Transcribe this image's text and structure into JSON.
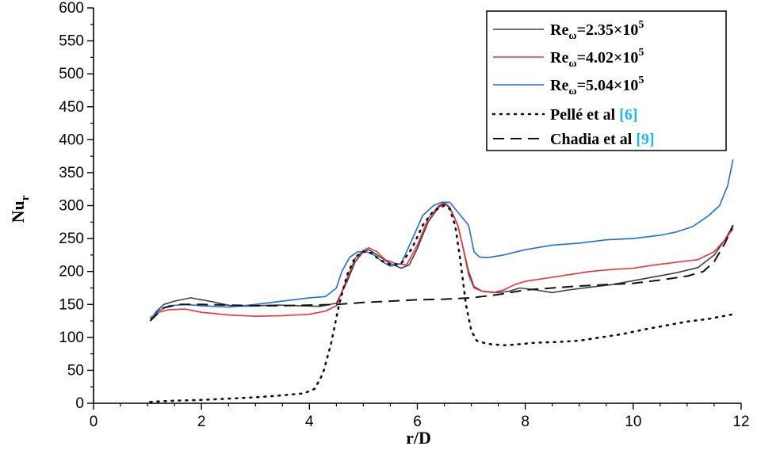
{
  "chart_data": {
    "type": "line",
    "title": "",
    "xlabel": "r/D",
    "ylabel": {
      "base": "Nu",
      "sub": "r"
    },
    "xlim": [
      0,
      12
    ],
    "ylim": [
      0,
      600
    ],
    "x_ticks": [
      "0",
      "2",
      "4",
      "6",
      "8",
      "10",
      "12"
    ],
    "y_ticks": [
      "0",
      "50",
      "100",
      "150",
      "200",
      "250",
      "300",
      "350",
      "400",
      "450",
      "500",
      "550",
      "600"
    ],
    "grid": false,
    "legend_position": "top-right",
    "series": [
      {
        "key": "re235",
        "label_main": "Re",
        "label_sub": "ω",
        "label_value": "=2.35×10",
        "label_exp": "5",
        "color": "#404040",
        "dash": "solid",
        "x": [
          1.05,
          1.15,
          1.3,
          1.5,
          1.8,
          2.2,
          2.6,
          3.0,
          3.4,
          3.8,
          4.2,
          4.5,
          4.7,
          4.85,
          5.0,
          5.1,
          5.2,
          5.35,
          5.5,
          5.7,
          5.85,
          6.0,
          6.2,
          6.4,
          6.5,
          6.6,
          6.75,
          6.85,
          6.95,
          7.05,
          7.2,
          7.5,
          7.7,
          7.9,
          8.2,
          8.5,
          8.8,
          9.2,
          9.6,
          10.0,
          10.4,
          10.8,
          11.2,
          11.5,
          11.7,
          11.85
        ],
        "y": [
          125,
          138,
          150,
          155,
          160,
          154,
          147,
          148,
          149,
          148,
          147,
          152,
          185,
          215,
          230,
          233,
          228,
          220,
          212,
          205,
          210,
          235,
          275,
          298,
          303,
          297,
          270,
          235,
          200,
          177,
          170,
          168,
          170,
          175,
          172,
          168,
          172,
          176,
          180,
          186,
          192,
          198,
          206,
          225,
          248,
          270
        ]
      },
      {
        "key": "re402",
        "label_main": "Re",
        "label_sub": "ω",
        "label_value": "=4.02×10",
        "label_exp": "5",
        "color": "#e8333a",
        "dash": "solid",
        "x": [
          1.05,
          1.2,
          1.4,
          1.7,
          2.0,
          2.5,
          3.0,
          3.5,
          4.0,
          4.3,
          4.5,
          4.7,
          4.85,
          5.0,
          5.1,
          5.25,
          5.4,
          5.6,
          5.8,
          6.0,
          6.2,
          6.4,
          6.5,
          6.6,
          6.75,
          6.85,
          6.95,
          7.05,
          7.2,
          7.4,
          7.6,
          7.8,
          8.0,
          8.4,
          8.8,
          9.2,
          9.6,
          10.0,
          10.4,
          10.8,
          11.2,
          11.5,
          11.7,
          11.85
        ],
        "y": [
          130,
          138,
          142,
          143,
          138,
          134,
          132,
          133,
          135,
          140,
          148,
          190,
          220,
          232,
          236,
          230,
          218,
          212,
          210,
          240,
          280,
          300,
          305,
          298,
          270,
          235,
          195,
          175,
          170,
          168,
          172,
          180,
          185,
          190,
          195,
          200,
          203,
          205,
          210,
          214,
          218,
          230,
          248,
          265
        ]
      },
      {
        "key": "re504",
        "label_main": "Re",
        "label_sub": "ω",
        "label_value": "=5.04×10",
        "label_exp": "5",
        "color": "#1f6fd6",
        "dash": "solid",
        "x": [
          1.05,
          1.2,
          1.4,
          1.7,
          2.0,
          2.5,
          3.0,
          3.5,
          4.0,
          4.3,
          4.5,
          4.6,
          4.75,
          4.9,
          5.05,
          5.2,
          5.35,
          5.5,
          5.7,
          5.9,
          6.1,
          6.3,
          6.45,
          6.6,
          6.75,
          6.95,
          7.05,
          7.15,
          7.3,
          7.6,
          8.0,
          8.5,
          9.0,
          9.5,
          10.0,
          10.5,
          10.8,
          11.1,
          11.4,
          11.6,
          11.75,
          11.85
        ],
        "y": [
          128,
          140,
          148,
          150,
          148,
          146,
          150,
          155,
          160,
          162,
          175,
          200,
          222,
          230,
          230,
          225,
          215,
          208,
          212,
          248,
          285,
          300,
          305,
          305,
          290,
          270,
          230,
          222,
          221,
          225,
          233,
          240,
          243,
          248,
          250,
          255,
          260,
          268,
          285,
          300,
          330,
          370
        ]
      },
      {
        "key": "pelle",
        "label_main": "Pellé et al ",
        "label_ref": "[6]",
        "color": "#111111",
        "dash": "dotted",
        "x": [
          1.05,
          1.5,
          2.0,
          2.5,
          3.0,
          3.5,
          3.9,
          4.1,
          4.25,
          4.4,
          4.55,
          4.7,
          4.85,
          5.0,
          5.15,
          5.3,
          5.5,
          5.7,
          5.9,
          6.1,
          6.3,
          6.5,
          6.6,
          6.7,
          6.8,
          6.9,
          7.0,
          7.1,
          7.3,
          7.6,
          7.8,
          8.2,
          8.6,
          9.0,
          9.4,
          9.8,
          10.2,
          10.6,
          11.0,
          11.4,
          11.85
        ],
        "y": [
          2,
          4,
          5,
          7,
          9,
          12,
          15,
          22,
          45,
          90,
          150,
          195,
          222,
          230,
          228,
          218,
          210,
          212,
          235,
          270,
          292,
          300,
          295,
          270,
          215,
          150,
          110,
          95,
          90,
          88,
          89,
          92,
          93,
          95,
          100,
          105,
          112,
          118,
          124,
          128,
          135
        ]
      },
      {
        "key": "chadia",
        "label_main": "Chadia et al ",
        "label_ref": "[9]",
        "color": "#111111",
        "dash": "dashed",
        "x": [
          1.05,
          1.3,
          1.6,
          2.0,
          2.5,
          3.0,
          3.5,
          4.0,
          4.5,
          5.0,
          5.5,
          6.0,
          6.5,
          7.0,
          7.5,
          8.0,
          8.5,
          9.0,
          9.5,
          10.0,
          10.5,
          11.0,
          11.3,
          11.5,
          11.7,
          11.85
        ],
        "y": [
          125,
          145,
          150,
          150,
          149,
          148,
          148,
          149,
          150,
          153,
          155,
          157,
          158,
          160,
          165,
          172,
          175,
          178,
          180,
          182,
          187,
          193,
          200,
          215,
          243,
          270
        ]
      }
    ]
  }
}
